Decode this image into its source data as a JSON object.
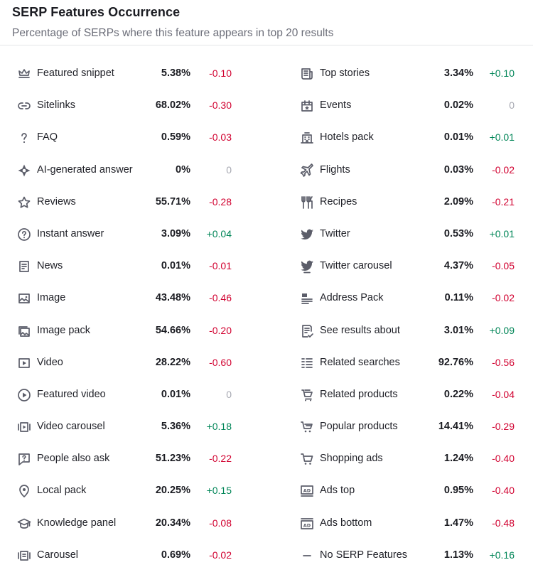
{
  "header": {
    "title": "SERP Features Occurrence",
    "subtitle": "Percentage of SERPs where this feature appears in top 20 results"
  },
  "left": [
    {
      "name": "Featured snippet",
      "value": "5.38%",
      "change": "-0.10",
      "icon": "crown-icon"
    },
    {
      "name": "Sitelinks",
      "value": "68.02%",
      "change": "-0.30",
      "icon": "link-icon"
    },
    {
      "name": "FAQ",
      "value": "0.59%",
      "change": "-0.03",
      "icon": "question-icon"
    },
    {
      "name": "AI-generated answer",
      "value": "0%",
      "change": "0",
      "icon": "ai-sparkle-icon"
    },
    {
      "name": "Reviews",
      "value": "55.71%",
      "change": "-0.28",
      "icon": "star-icon"
    },
    {
      "name": "Instant answer",
      "value": "3.09%",
      "change": "+0.04",
      "icon": "question-circle-icon"
    },
    {
      "name": "News",
      "value": "0.01%",
      "change": "-0.01",
      "icon": "news-icon"
    },
    {
      "name": "Image",
      "value": "43.48%",
      "change": "-0.46",
      "icon": "image-icon"
    },
    {
      "name": "Image pack",
      "value": "54.66%",
      "change": "-0.20",
      "icon": "image-pack-icon"
    },
    {
      "name": "Video",
      "value": "28.22%",
      "change": "-0.60",
      "icon": "video-icon"
    },
    {
      "name": "Featured video",
      "value": "0.01%",
      "change": "0",
      "icon": "play-circle-icon"
    },
    {
      "name": "Video carousel",
      "value": "5.36%",
      "change": "+0.18",
      "icon": "video-carousel-icon"
    },
    {
      "name": "People also ask",
      "value": "51.23%",
      "change": "-0.22",
      "icon": "question-bubble-icon"
    },
    {
      "name": "Local pack",
      "value": "20.25%",
      "change": "+0.15",
      "icon": "map-pin-icon"
    },
    {
      "name": "Knowledge panel",
      "value": "20.34%",
      "change": "-0.08",
      "icon": "graduation-cap-icon"
    },
    {
      "name": "Carousel",
      "value": "0.69%",
      "change": "-0.02",
      "icon": "carousel-icon"
    }
  ],
  "right": [
    {
      "name": "Top stories",
      "value": "3.34%",
      "change": "+0.10",
      "icon": "newspaper-icon"
    },
    {
      "name": "Events",
      "value": "0.02%",
      "change": "0",
      "icon": "calendar-icon"
    },
    {
      "name": "Hotels pack",
      "value": "0.01%",
      "change": "+0.01",
      "icon": "hotel-icon"
    },
    {
      "name": "Flights",
      "value": "0.03%",
      "change": "-0.02",
      "icon": "plane-icon"
    },
    {
      "name": "Recipes",
      "value": "2.09%",
      "change": "-0.21",
      "icon": "fork-knife-icon"
    },
    {
      "name": "Twitter",
      "value": "0.53%",
      "change": "+0.01",
      "icon": "twitter-icon"
    },
    {
      "name": "Twitter carousel",
      "value": "4.37%",
      "change": "-0.05",
      "icon": "twitter-carousel-icon"
    },
    {
      "name": "Address Pack",
      "value": "0.11%",
      "change": "-0.02",
      "icon": "address-icon"
    },
    {
      "name": "See results about",
      "value": "3.01%",
      "change": "+0.09",
      "icon": "results-about-icon"
    },
    {
      "name": "Related searches",
      "value": "92.76%",
      "change": "-0.56",
      "icon": "list-icon"
    },
    {
      "name": "Related products",
      "value": "0.22%",
      "change": "-0.04",
      "icon": "product-icon"
    },
    {
      "name": "Popular products",
      "value": "14.41%",
      "change": "-0.29",
      "icon": "cart-list-icon"
    },
    {
      "name": "Shopping ads",
      "value": "1.24%",
      "change": "-0.40",
      "icon": "shopping-cart-icon"
    },
    {
      "name": "Ads top",
      "value": "0.95%",
      "change": "-0.40",
      "icon": "ads-top-icon"
    },
    {
      "name": "Ads bottom",
      "value": "1.47%",
      "change": "-0.48",
      "icon": "ads-bottom-icon"
    },
    {
      "name": "No SERP Features",
      "value": "1.13%",
      "change": "+0.16",
      "icon": "dash-icon"
    }
  ],
  "colors": {
    "negative": "#d1002f",
    "positive": "#008557",
    "neutral": "#a6a8b1",
    "icon": "#5b5d69"
  }
}
